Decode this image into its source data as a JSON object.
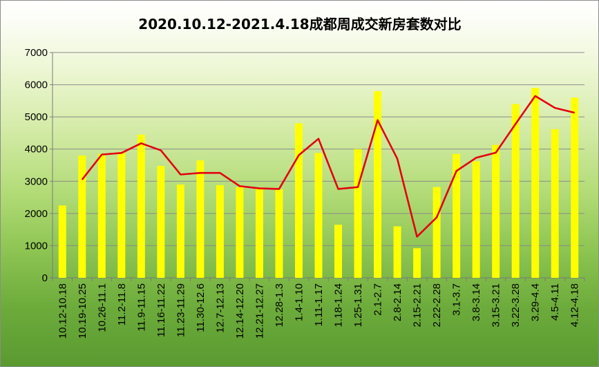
{
  "chart_data": {
    "type": "bar",
    "title": "2020.10.12-2021.4.18成都周成交新房套数对比",
    "xlabel": "",
    "ylabel": "",
    "ylim": [
      0,
      7000
    ],
    "yticks": [
      0,
      1000,
      2000,
      3000,
      4000,
      5000,
      6000,
      7000
    ],
    "grid": true,
    "legend": "none",
    "categories": [
      "10.12-10.18",
      "10.19-10.25",
      "10.26-11.1",
      "11.2-11.8",
      "11.9-11.15",
      "11.16-11.22",
      "11.23-11.29",
      "11.30-12.6",
      "12.7-12.13",
      "12.14-12.20",
      "12.21-12.27",
      "12.28-1.3",
      "1.4-1.10",
      "1.11-1.17",
      "1.18-1.24",
      "1.25-1.31",
      "2.1-2.7",
      "2.8-2.14",
      "2.15-2.21",
      "2.22-2.28",
      "3.1-3.7",
      "3.8-3.14",
      "3.15-3.21",
      "3.22-3.28",
      "3.29-4.4",
      "4.5-4.11",
      "4.12-4.18"
    ],
    "series": [
      {
        "type": "bar",
        "color": "#ffff00",
        "values": [
          2250,
          3800,
          3850,
          3900,
          4450,
          3480,
          2900,
          3650,
          2880,
          2820,
          2770,
          2750,
          4800,
          3880,
          1650,
          4000,
          5800,
          1600,
          920,
          2820,
          3850,
          3620,
          4130,
          5400,
          5900,
          4620,
          5600
        ]
      },
      {
        "type": "line",
        "color": "#e3000f",
        "values": [
          null,
          3050,
          3830,
          3880,
          4180,
          3960,
          3210,
          3260,
          3260,
          2850,
          2780,
          2760,
          3810,
          4320,
          2760,
          2820,
          4900,
          3700,
          1280,
          1880,
          3320,
          3730,
          3890,
          4780,
          5650,
          5280,
          5130
        ]
      }
    ]
  }
}
